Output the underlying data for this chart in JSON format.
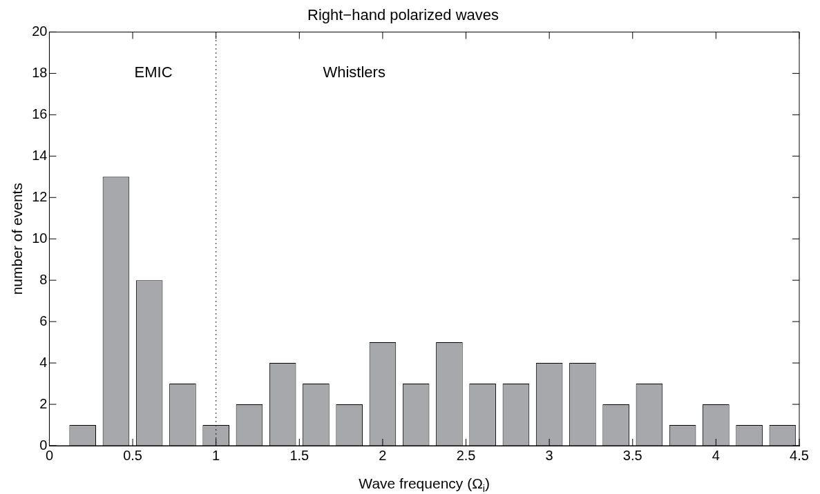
{
  "chart_data": {
    "type": "histogram",
    "title": "Right−hand polarized waves",
    "xlabel": "Wave frequency (Ω$_{i}$)",
    "ylabel": "number of events",
    "bins": [
      0.1,
      0.3,
      0.5,
      0.7,
      0.9,
      1.1,
      1.3,
      1.5,
      1.7,
      1.9,
      2.1,
      2.3,
      2.5,
      2.7,
      2.9,
      3.1,
      3.3,
      3.5,
      3.7,
      3.9,
      4.1,
      4.3,
      4.5
    ],
    "values": [
      1,
      13,
      8,
      3,
      1,
      2,
      4,
      3,
      2,
      5,
      3,
      5,
      3,
      3,
      4,
      4,
      2,
      3,
      1,
      2,
      1,
      1
    ],
    "color": "#a7a8ac",
    "xlim": [
      0,
      4.5
    ],
    "xticks": [
      0,
      0.5,
      1,
      1.5,
      2,
      2.5,
      3,
      3.5,
      4,
      4.5
    ],
    "ylim": [
      0,
      20
    ],
    "yticks": [
      0,
      2,
      4,
      6,
      8,
      10,
      12,
      14,
      16,
      18,
      20
    ],
    "grid": false,
    "legend": false,
    "ref_lines": [
      {
        "axis": "x",
        "value": 1,
        "line_style": "dotted",
        "color": "#000000"
      }
    ],
    "annotations": [
      "EMIC",
      "Whistlers"
    ]
  }
}
